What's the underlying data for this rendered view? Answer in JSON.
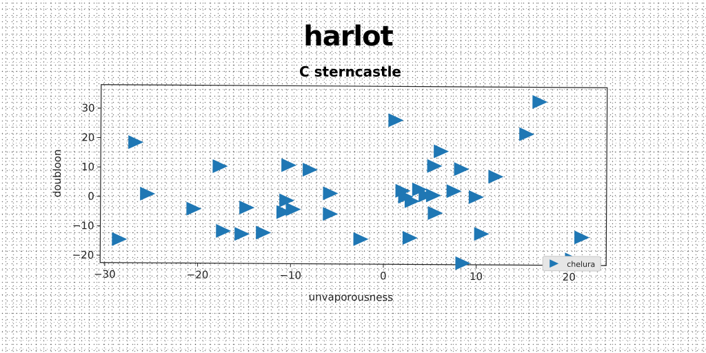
{
  "chart_data": {
    "type": "scatter",
    "title": "harlot",
    "subtitle": "C sterncastle",
    "xlabel": "unvaporousness",
    "ylabel": "doubloon",
    "xlim": [
      -30.5,
      24
    ],
    "ylim": [
      -22.5,
      38
    ],
    "xticks": [
      -30,
      -20,
      -10,
      0,
      10,
      20
    ],
    "yticks": [
      -20,
      -10,
      0,
      10,
      20,
      30
    ],
    "grid": false,
    "legend": "lower-right",
    "marker": "triangle-right",
    "color": "#1f77b4",
    "series": [
      {
        "name": "chelura",
        "points": [
          [
            -28.5,
            -14.5
          ],
          [
            -26.8,
            18.5
          ],
          [
            -25.5,
            1
          ],
          [
            -20.5,
            -4
          ],
          [
            -17.7,
            10.5
          ],
          [
            -17.3,
            -11.5
          ],
          [
            -15.3,
            -12.5
          ],
          [
            -14.8,
            -3.5
          ],
          [
            -13,
            -12
          ],
          [
            -10.3,
            11
          ],
          [
            -10.5,
            -1
          ],
          [
            -10.8,
            -5
          ],
          [
            -9.8,
            -4
          ],
          [
            -8,
            9.5
          ],
          [
            -5.8,
            1.5
          ],
          [
            -5.8,
            -5.5
          ],
          [
            -2.5,
            -14
          ],
          [
            1.2,
            26.5
          ],
          [
            2,
            2.5
          ],
          [
            2.3,
            0.5
          ],
          [
            3,
            -1
          ],
          [
            2.8,
            -13.5
          ],
          [
            3.8,
            3
          ],
          [
            4.5,
            1
          ],
          [
            5.3,
            1
          ],
          [
            5.4,
            11
          ],
          [
            5.5,
            -5
          ],
          [
            6.1,
            16
          ],
          [
            7.5,
            2.5
          ],
          [
            8.3,
            10
          ],
          [
            8.5,
            -22
          ],
          [
            9.9,
            0.5
          ],
          [
            10.5,
            -12
          ],
          [
            12,
            7.5
          ],
          [
            15.3,
            22
          ],
          [
            16.7,
            33
          ],
          [
            20.3,
            -20.5
          ],
          [
            21.3,
            -13
          ]
        ]
      }
    ]
  }
}
